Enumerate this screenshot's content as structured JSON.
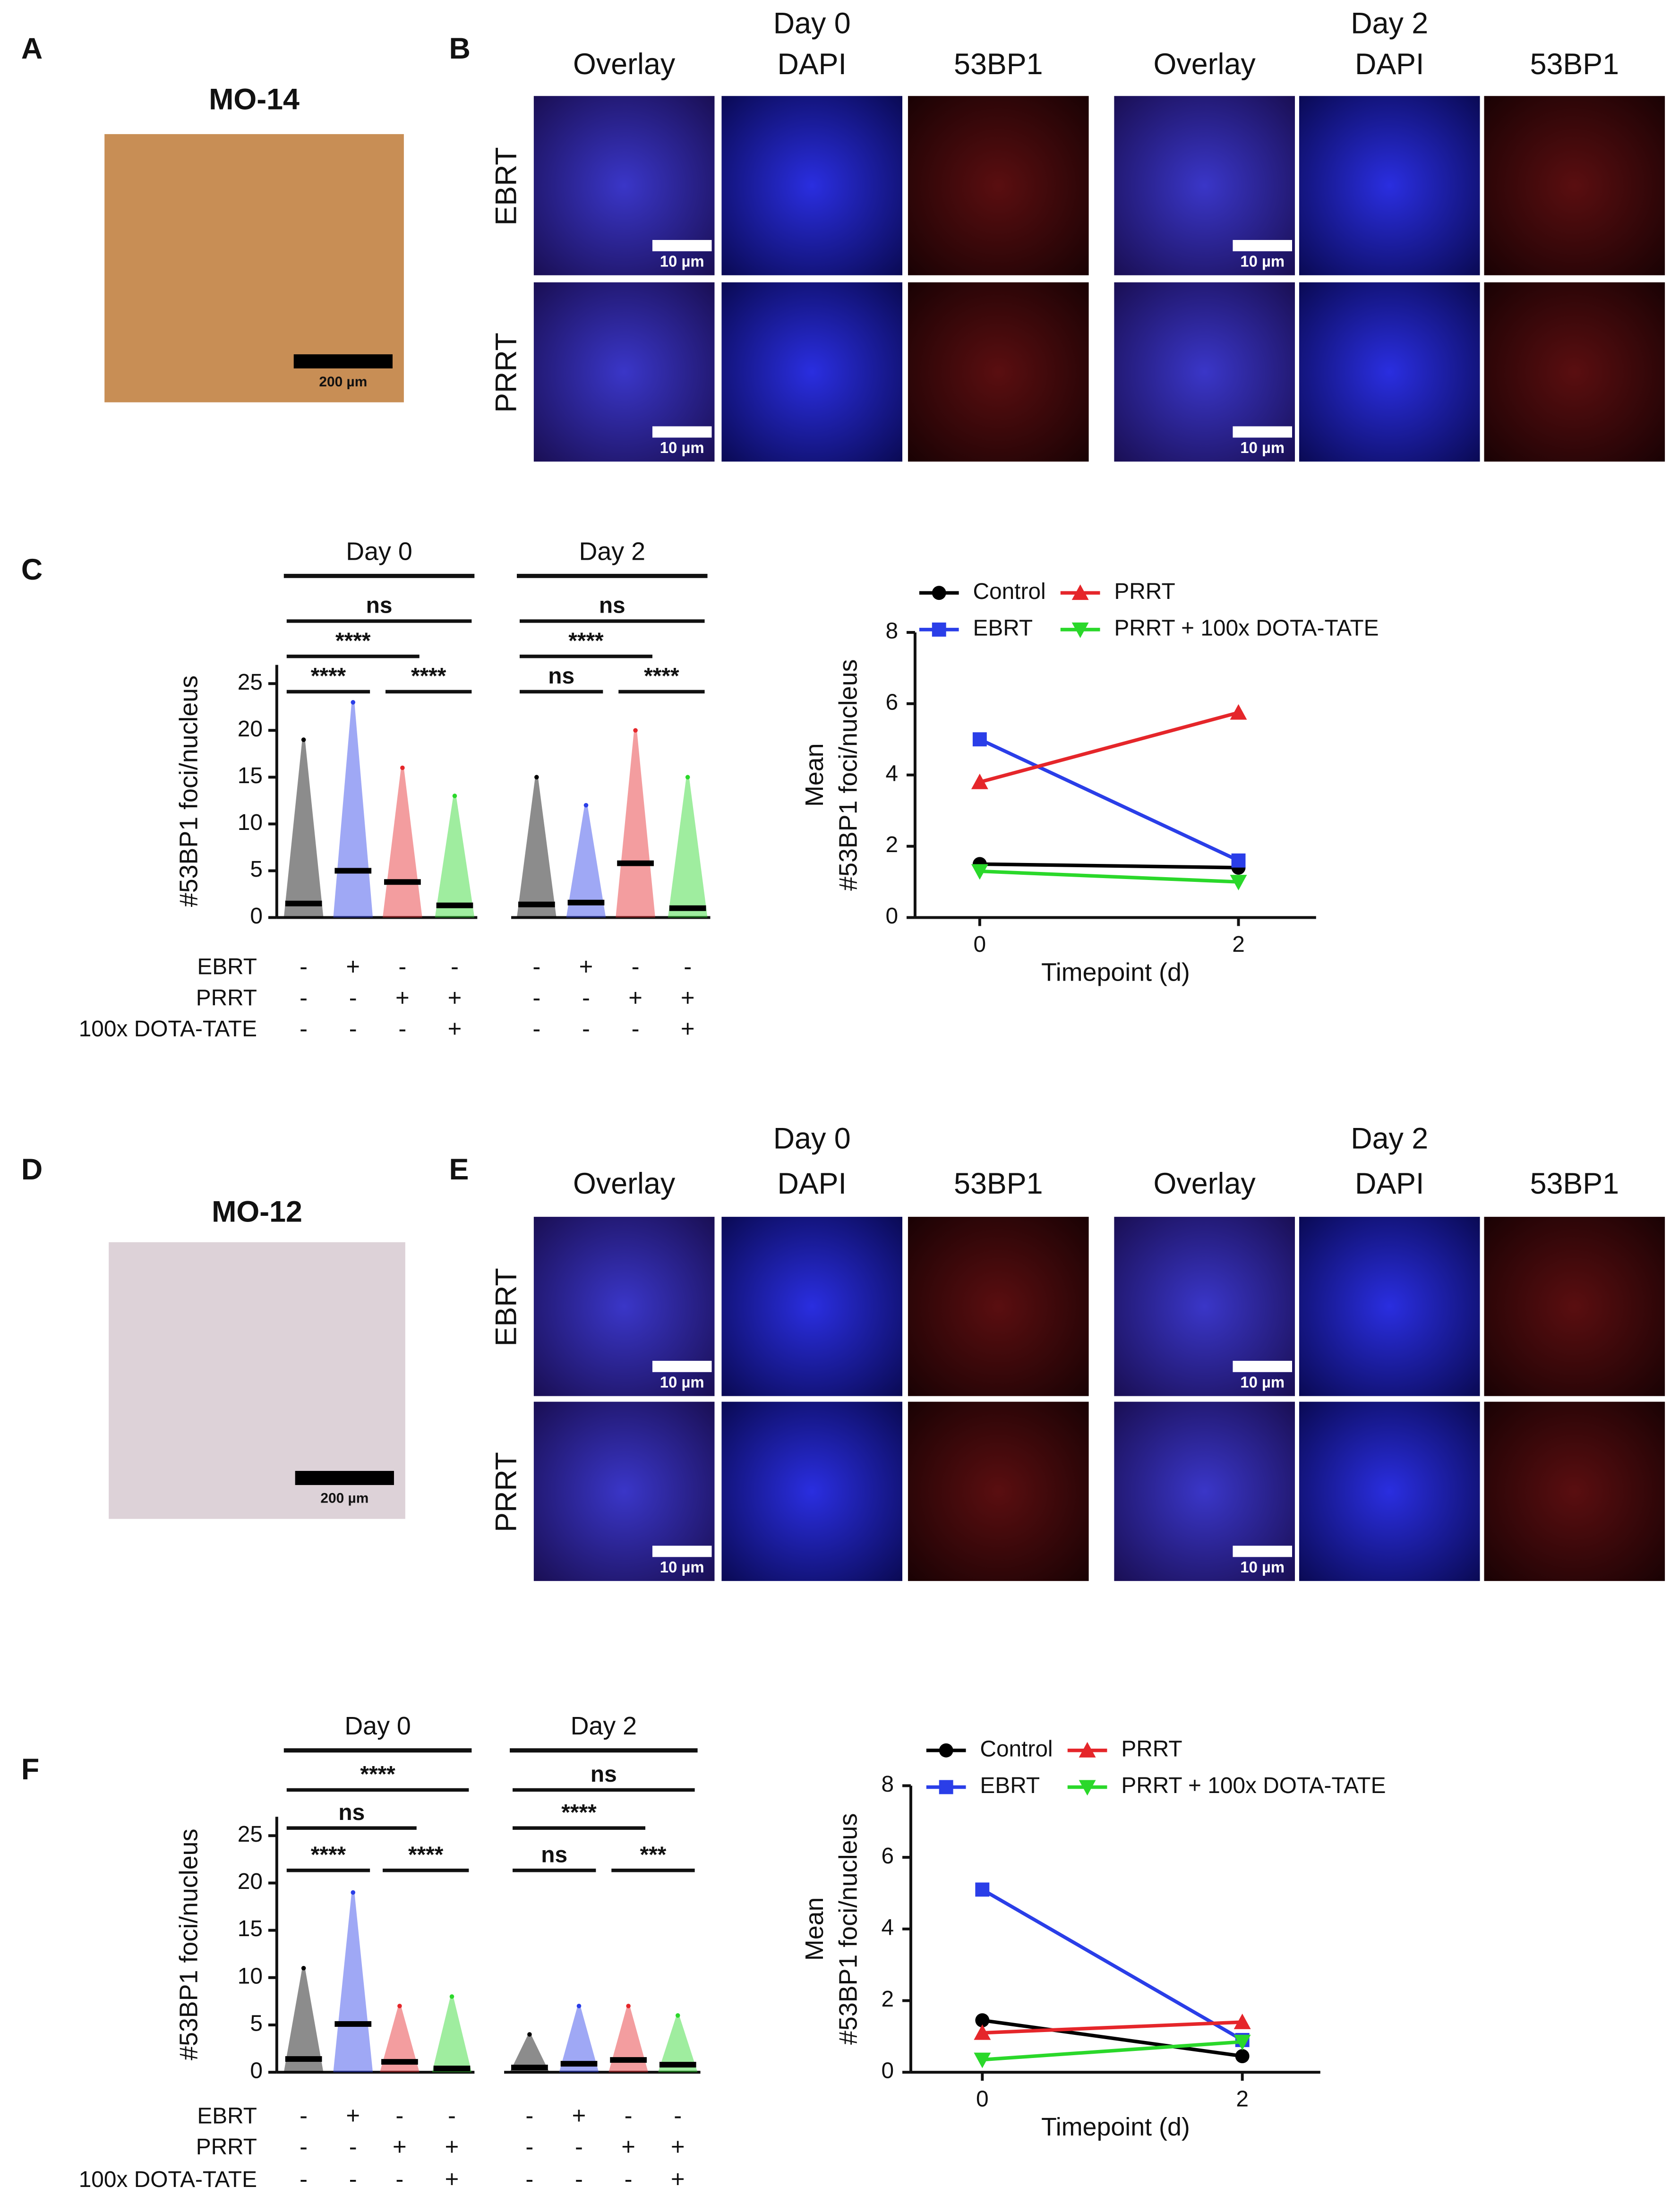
{
  "panel_labels": [
    "A",
    "B",
    "C",
    "D",
    "E",
    "F"
  ],
  "ihc": [
    {
      "title": "MO-14",
      "scale_bar": "200 µm"
    },
    {
      "title": "MO-12",
      "scale_bar": "200 µm"
    }
  ],
  "microscopy": [
    {
      "days": [
        "Day 0",
        "Day 2"
      ],
      "channels": [
        "Overlay",
        "DAPI",
        "53BP1"
      ],
      "rows": [
        "EBRT",
        "PRRT"
      ],
      "scale_bar": "10 µm"
    },
    {
      "days": [
        "Day 0",
        "Day 2"
      ],
      "channels": [
        "Overlay",
        "DAPI",
        "53BP1"
      ],
      "rows": [
        "EBRT",
        "PRRT"
      ],
      "scale_bar": "10 µm"
    }
  ],
  "chart_data": [
    {
      "type": "dotplot",
      "ylabel": "#53BP1 foci/nucleus",
      "ylim": [
        0,
        27
      ],
      "yticks": [
        0,
        5,
        10,
        15,
        20,
        25
      ],
      "groups": [
        "Day 0",
        "Day 2"
      ],
      "colors": [
        "#000000",
        "#2a3ee8",
        "#e5262a",
        "#2ad82a",
        "#000000",
        "#2a3ee8",
        "#e5262a",
        "#2ad82a"
      ],
      "values": [
        1.5,
        5.0,
        3.8,
        1.3,
        1.4,
        1.6,
        5.8,
        1.0
      ],
      "max": [
        19,
        23,
        16,
        13,
        15,
        12,
        20,
        15
      ],
      "treatments": [
        "EBRT",
        "PRRT",
        "100x DOTA-TATE"
      ],
      "treatment_signs": [
        [
          "-",
          "+",
          "-",
          "-",
          "-",
          "+",
          "-",
          "-"
        ],
        [
          "-",
          "-",
          "+",
          "+",
          "-",
          "-",
          "+",
          "+"
        ],
        [
          "-",
          "-",
          "-",
          "+",
          "-",
          "-",
          "-",
          "+"
        ]
      ],
      "comparisons": [
        {
          "label": "****",
          "pair": [
            0,
            1
          ]
        },
        {
          "label": "****",
          "pair": [
            2,
            3
          ]
        },
        {
          "label": "****",
          "pair": [
            0,
            2
          ]
        },
        {
          "label": "ns",
          "pair": [
            0,
            3
          ]
        },
        {
          "label": "ns",
          "pair": [
            4,
            5
          ]
        },
        {
          "label": "****",
          "pair": [
            6,
            7
          ]
        },
        {
          "label": "****",
          "pair": [
            4,
            6
          ]
        },
        {
          "label": "ns",
          "pair": [
            4,
            7
          ]
        }
      ]
    },
    {
      "type": "line",
      "xlabel": "Timepoint (d)",
      "ylabel": [
        "Mean",
        "#53BP1 foci/nucleus"
      ],
      "x": [
        0,
        2
      ],
      "xlim": [
        -0.5,
        2.6
      ],
      "xticks": [
        0,
        2
      ],
      "ylim": [
        0,
        8
      ],
      "yticks": [
        0,
        2,
        4,
        6,
        8
      ],
      "series": [
        {
          "name": "Control",
          "color": "#000000",
          "marker": "circle",
          "values": [
            1.5,
            1.4
          ]
        },
        {
          "name": "EBRT",
          "color": "#2a3ee8",
          "marker": "square",
          "values": [
            5.0,
            1.6
          ]
        },
        {
          "name": "PRRT",
          "color": "#e5262a",
          "marker": "triangle-up",
          "values": [
            3.8,
            5.75
          ]
        },
        {
          "name": "PRRT + 100x DOTA-TATE",
          "color": "#2ad82a",
          "marker": "triangle-down",
          "values": [
            1.3,
            1.0
          ]
        }
      ]
    },
    {
      "type": "dotplot",
      "ylabel": "#53BP1 foci/nucleus",
      "ylim": [
        0,
        27
      ],
      "yticks": [
        0,
        5,
        10,
        15,
        20,
        25
      ],
      "groups": [
        "Day 0",
        "Day 2"
      ],
      "colors": [
        "#000000",
        "#2a3ee8",
        "#e5262a",
        "#2ad82a",
        "#000000",
        "#2a3ee8",
        "#e5262a",
        "#2ad82a"
      ],
      "values": [
        1.4,
        5.1,
        1.1,
        0.4,
        0.5,
        0.9,
        1.3,
        0.8
      ],
      "max": [
        11,
        19,
        7,
        8,
        4,
        7,
        7,
        6
      ],
      "treatments": [
        "EBRT",
        "PRRT",
        "100x DOTA-TATE"
      ],
      "treatment_signs": [
        [
          "-",
          "+",
          "-",
          "-",
          "-",
          "+",
          "-",
          "-"
        ],
        [
          "-",
          "-",
          "+",
          "+",
          "-",
          "-",
          "+",
          "+"
        ],
        [
          "-",
          "-",
          "-",
          "+",
          "-",
          "-",
          "-",
          "+"
        ]
      ],
      "comparisons": [
        {
          "label": "****",
          "pair": [
            0,
            1
          ]
        },
        {
          "label": "****",
          "pair": [
            2,
            3
          ]
        },
        {
          "label": "ns",
          "pair": [
            0,
            2
          ]
        },
        {
          "label": "****",
          "pair": [
            0,
            3
          ]
        },
        {
          "label": "ns",
          "pair": [
            4,
            5
          ]
        },
        {
          "label": "***",
          "pair": [
            6,
            7
          ]
        },
        {
          "label": "****",
          "pair": [
            4,
            6
          ]
        },
        {
          "label": "ns",
          "pair": [
            4,
            7
          ]
        }
      ]
    },
    {
      "type": "line",
      "xlabel": "Timepoint (d)",
      "ylabel": [
        "Mean",
        "#53BP1 foci/nucleus"
      ],
      "x": [
        0,
        2
      ],
      "xlim": [
        -0.55,
        2.6
      ],
      "xticks": [
        0,
        2
      ],
      "ylim": [
        0,
        8
      ],
      "yticks": [
        0,
        2,
        4,
        6,
        8
      ],
      "series": [
        {
          "name": "Control",
          "color": "#000000",
          "marker": "circle",
          "values": [
            1.45,
            0.45
          ]
        },
        {
          "name": "EBRT",
          "color": "#2a3ee8",
          "marker": "square",
          "values": [
            5.1,
            0.9
          ]
        },
        {
          "name": "PRRT",
          "color": "#e5262a",
          "marker": "triangle-up",
          "values": [
            1.1,
            1.4
          ]
        },
        {
          "name": "PRRT + 100x DOTA-TATE",
          "color": "#2ad82a",
          "marker": "triangle-down",
          "values": [
            0.35,
            0.85
          ]
        }
      ]
    }
  ]
}
